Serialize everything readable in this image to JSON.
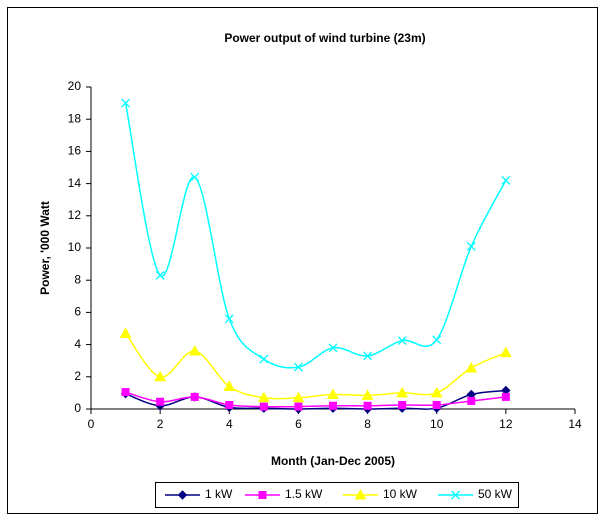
{
  "chart_data": {
    "type": "line",
    "title": "Power output of wind turbine (23m)",
    "x_label": "Month (Jan-Dec 2005)",
    "y_label": "Power, '000 Watt",
    "x": [
      1,
      2,
      3,
      4,
      5,
      6,
      7,
      8,
      9,
      10,
      11,
      12
    ],
    "series": [
      {
        "name": "1 kW",
        "color": "#000080",
        "marker": "diamond",
        "values": [
          0.95,
          0.2,
          0.75,
          0.1,
          0.05,
          0.0,
          0.05,
          0.0,
          0.05,
          0.05,
          0.9,
          1.15
        ]
      },
      {
        "name": "1.5 kW",
        "color": "#ff00ff",
        "marker": "square",
        "values": [
          1.05,
          0.45,
          0.75,
          0.25,
          0.15,
          0.15,
          0.2,
          0.2,
          0.25,
          0.25,
          0.5,
          0.75
        ]
      },
      {
        "name": "10 kW",
        "color": "#ffff00",
        "marker": "triangle",
        "values": [
          4.7,
          2.0,
          3.6,
          1.4,
          0.7,
          0.7,
          0.9,
          0.85,
          1.0,
          1.0,
          2.55,
          3.5
        ]
      },
      {
        "name": "50 kW",
        "color": "#00ffff",
        "marker": "x",
        "values": [
          19.0,
          8.3,
          14.4,
          5.6,
          3.1,
          2.6,
          3.8,
          3.3,
          4.25,
          4.3,
          10.1,
          14.2
        ]
      }
    ],
    "xlim": [
      0,
      14
    ],
    "xticks": [
      0,
      2,
      4,
      6,
      8,
      10,
      12,
      14
    ],
    "ylim": [
      0,
      20
    ],
    "yticks": [
      0,
      2,
      4,
      6,
      8,
      10,
      12,
      14,
      16,
      18,
      20
    ],
    "smooth": true,
    "grid": false,
    "legend": "bottom"
  }
}
